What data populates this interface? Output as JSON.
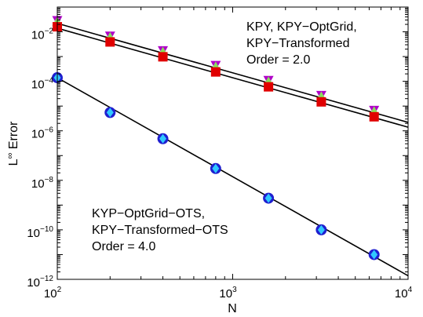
{
  "chart_data": {
    "type": "scatter",
    "xscale": "log",
    "yscale": "log",
    "xlim": [
      100,
      10000
    ],
    "ylim": [
      1e-12,
      0.1
    ],
    "grid": false,
    "xlabel": "N",
    "ylabel_base": "L",
    "ylabel_sup": "∞",
    "ylabel_tail": " Error",
    "x_ticks": [
      {
        "base": "10",
        "exp": "2",
        "value": 100
      },
      {
        "base": "10",
        "exp": "3",
        "value": 1000
      },
      {
        "base": "10",
        "exp": "4",
        "value": 10000
      }
    ],
    "y_ticks": [
      {
        "base": "10",
        "exp": "−2",
        "value": 0.01
      },
      {
        "base": "10",
        "exp": "−4",
        "value": 0.0001
      },
      {
        "base": "10",
        "exp": "−6",
        "value": 1e-06
      },
      {
        "base": "10",
        "exp": "−8",
        "value": 1e-08
      },
      {
        "base": "10",
        "exp": "−10",
        "value": 1e-10
      },
      {
        "base": "10",
        "exp": "−12",
        "value": 1e-12
      }
    ],
    "series": [
      {
        "marker": "triangle-down",
        "color": "#b000c8",
        "x": [
          100,
          200,
          400,
          800,
          1600,
          3200,
          6400
        ],
        "y": [
          0.028,
          0.0066,
          0.0017,
          0.00043,
          0.000107,
          2.65e-05,
          6.6e-06
        ]
      },
      {
        "marker": "triangle-up",
        "color": "#88e05a",
        "x": [
          100,
          200,
          400,
          800,
          1600,
          3200,
          6400
        ],
        "y": [
          0.025,
          0.0059,
          0.0015,
          0.00038,
          9.5e-05,
          2.36e-05,
          5.9e-06
        ]
      },
      {
        "marker": "square",
        "color": "#e00000",
        "x": [
          100,
          200,
          400,
          800,
          1600,
          3200,
          6400
        ],
        "y": [
          0.016,
          0.0039,
          0.00098,
          0.00024,
          6e-05,
          1.48e-05,
          3.7e-06
        ]
      },
      {
        "marker": "circle",
        "color": "#1f1fd0",
        "x": [
          100,
          200,
          400,
          800,
          1600,
          3200,
          6400
        ],
        "y": [
          0.00014,
          5.5e-06,
          4.8e-07,
          3e-08,
          1.9e-09,
          1e-10,
          1e-11
        ]
      },
      {
        "marker": "diamond",
        "color": "#30c8ff",
        "x": [
          100,
          200,
          400,
          800,
          1600,
          3200,
          6400
        ],
        "y": [
          0.00014,
          5.5e-06,
          4.8e-07,
          3e-08,
          1.9e-09,
          1e-10,
          1e-11
        ]
      }
    ],
    "fit_lines": [
      {
        "x": [
          100,
          10000
        ],
        "y": [
          0.022,
          2.2e-06
        ]
      },
      {
        "x": [
          100,
          10000
        ],
        "y": [
          0.014,
          1.4e-06
        ]
      },
      {
        "x": [
          100,
          10000
        ],
        "y": [
          0.00014,
          1.4e-12
        ]
      }
    ],
    "annotations": [
      {
        "id": "order2",
        "lines": [
          "KPY, KPY−OptGrid,",
          "KPY−Transformed",
          "Order = 2.0"
        ]
      },
      {
        "id": "order4",
        "lines": [
          "KYP−OptGrid−OTS,",
          "KPY−Transformed−OTS",
          "Order = 4.0"
        ]
      }
    ]
  }
}
